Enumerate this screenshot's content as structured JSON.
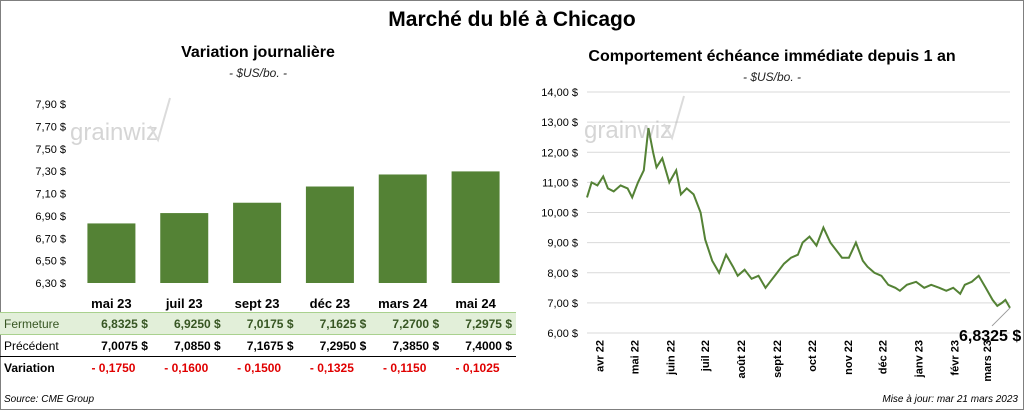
{
  "title": "Marché du blé à Chicago",
  "left": {
    "subtitle": "Variation journalière",
    "unit": "- $US/bo. -",
    "watermark": "grainwiz"
  },
  "right": {
    "subtitle": "Comportement échéance immédiate depuis 1 an",
    "unit": "- $US/bo. -",
    "watermark": "grainwiz",
    "last_value_label": "6,8325 $"
  },
  "table": {
    "rows": [
      {
        "label": "Fermeture",
        "values": [
          "6,8325 $",
          "6,9250 $",
          "7,0175 $",
          "7,1625 $",
          "7,2700 $",
          "7,2975 $"
        ]
      },
      {
        "label": "Précédent",
        "values": [
          "7,0075 $",
          "7,0850 $",
          "7,1675 $",
          "7,2950 $",
          "7,3850 $",
          "7,4000 $"
        ]
      },
      {
        "label": "Variation",
        "values": [
          "- 0,1750",
          "- 0,1600",
          "- 0,1500",
          "- 0,1325",
          "- 0,1150",
          "- 0,1025"
        ]
      }
    ]
  },
  "footer": {
    "source": "Source: CME Group",
    "update": "Mise à jour: mar 21 mars 2023"
  },
  "colors": {
    "bar": "#548235",
    "line": "#548235",
    "grid": "#d9d9d9",
    "negative": "#e00000"
  },
  "chart_data": [
    {
      "type": "bar",
      "title": "Variation journalière",
      "ylabel": "$US/bo.",
      "categories": [
        "mai 23",
        "juil 23",
        "sept 23",
        "déc 23",
        "mars 24",
        "mai 24"
      ],
      "values": [
        6.8325,
        6.925,
        7.0175,
        7.1625,
        7.27,
        7.2975
      ],
      "ylim": [
        6.3,
        7.9
      ],
      "yticks": [
        "6,30 $",
        "6,50 $",
        "6,70 $",
        "6,90 $",
        "7,10 $",
        "7,30 $",
        "7,50 $",
        "7,70 $",
        "7,90 $"
      ],
      "grid": false
    },
    {
      "type": "line",
      "title": "Comportement échéance immédiate depuis 1 an",
      "ylabel": "$US/bo.",
      "ylim": [
        6.0,
        14.0
      ],
      "yticks": [
        "6,00 $",
        "7,00 $",
        "8,00 $",
        "9,00 $",
        "10,00 $",
        "11,00 $",
        "12,00 $",
        "13,00 $",
        "14,00 $"
      ],
      "xticks": [
        "avr 22",
        "mai 22",
        "juin 22",
        "juil 22",
        "août 22",
        "sept 22",
        "oct 22",
        "nov 22",
        "déc 22",
        "janv 23",
        "févr 23",
        "mars 23"
      ],
      "grid": true,
      "x": [
        "2022-03-21",
        "2022-03-25",
        "2022-03-30",
        "2022-04-04",
        "2022-04-08",
        "2022-04-13",
        "2022-04-19",
        "2022-04-25",
        "2022-04-29",
        "2022-05-04",
        "2022-05-09",
        "2022-05-13",
        "2022-05-17",
        "2022-05-20",
        "2022-05-25",
        "2022-05-31",
        "2022-06-06",
        "2022-06-10",
        "2022-06-15",
        "2022-06-21",
        "2022-06-27",
        "2022-07-01",
        "2022-07-07",
        "2022-07-13",
        "2022-07-19",
        "2022-07-25",
        "2022-07-29",
        "2022-08-04",
        "2022-08-10",
        "2022-08-16",
        "2022-08-22",
        "2022-08-26",
        "2022-09-01",
        "2022-09-07",
        "2022-09-13",
        "2022-09-19",
        "2022-09-23",
        "2022-09-29",
        "2022-10-05",
        "2022-10-11",
        "2022-10-17",
        "2022-10-21",
        "2022-10-27",
        "2022-11-02",
        "2022-11-08",
        "2022-11-14",
        "2022-11-18",
        "2022-11-24",
        "2022-11-30",
        "2022-12-06",
        "2022-12-12",
        "2022-12-16",
        "2022-12-22",
        "2022-12-30",
        "2023-01-06",
        "2023-01-12",
        "2023-01-19",
        "2023-01-25",
        "2023-01-31",
        "2023-02-06",
        "2023-02-10",
        "2023-02-16",
        "2023-02-22",
        "2023-02-28",
        "2023-03-06",
        "2023-03-10",
        "2023-03-14",
        "2023-03-17",
        "2023-03-21"
      ],
      "y": [
        10.5,
        11.0,
        10.9,
        11.2,
        10.8,
        10.7,
        10.9,
        10.8,
        10.5,
        11.0,
        11.4,
        12.8,
        12.0,
        11.5,
        11.8,
        11.0,
        11.4,
        10.6,
        10.8,
        10.6,
        10.0,
        9.1,
        8.4,
        8.0,
        8.6,
        8.2,
        7.9,
        8.1,
        7.8,
        7.9,
        7.5,
        7.7,
        8.0,
        8.3,
        8.5,
        8.6,
        9.0,
        9.2,
        8.9,
        9.5,
        9.0,
        8.8,
        8.5,
        8.5,
        9.0,
        8.4,
        8.2,
        8.0,
        7.9,
        7.6,
        7.5,
        7.4,
        7.6,
        7.7,
        7.5,
        7.6,
        7.5,
        7.4,
        7.5,
        7.3,
        7.6,
        7.7,
        7.9,
        7.5,
        7.1,
        6.9,
        7.0,
        7.1,
        6.8325
      ]
    }
  ]
}
